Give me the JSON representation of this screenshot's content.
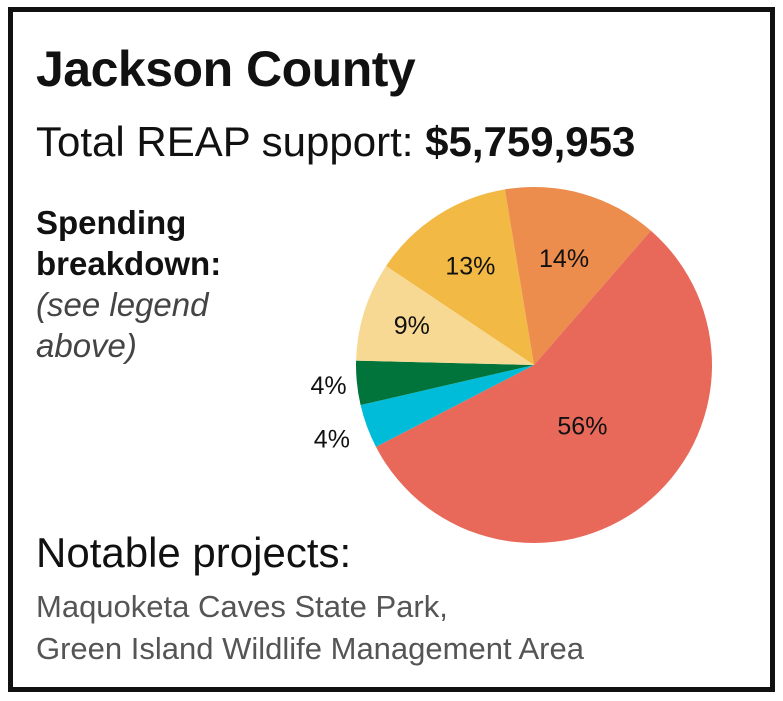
{
  "title": "Jackson County",
  "support": {
    "label": "Total REAP support: ",
    "amount": "$5,759,953"
  },
  "breakdown": {
    "heading_line1": "Spending",
    "heading_line2": "breakdown:",
    "note_line1": "(see legend",
    "note_line2": "above)"
  },
  "chart_data": {
    "type": "pie",
    "title": "",
    "slices": [
      {
        "label": "56%",
        "value": 56,
        "color": "#e8695a"
      },
      {
        "label": "4%",
        "value": 4,
        "color": "#00bcd8"
      },
      {
        "label": "4%",
        "value": 4,
        "color": "#00743a"
      },
      {
        "label": "9%",
        "value": 9,
        "color": "#f7d994"
      },
      {
        "label": "13%",
        "value": 13,
        "color": "#f2b945"
      },
      {
        "label": "14%",
        "value": 14,
        "color": "#ec8c4d"
      }
    ],
    "legend": false
  },
  "notable": {
    "heading": "Notable projects:",
    "items": [
      "Maquoketa Caves State Park,",
      "Green Island Wildlife Management Area"
    ]
  }
}
